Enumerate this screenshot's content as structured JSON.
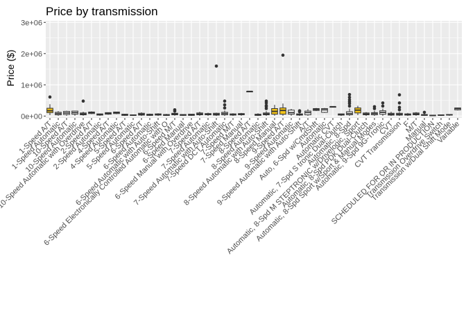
{
  "chart_data": {
    "type": "boxplot",
    "title": "Price by transmission",
    "xlabel": "",
    "ylabel": "Price ($)",
    "ylim": [
      -60000,
      3050000
    ],
    "y_ticks": [
      0,
      1000000,
      2000000,
      3000000
    ],
    "y_tick_labels": [
      "0e+00",
      "1e+06",
      "2e+06",
      "3e+06"
    ],
    "grid": true,
    "legend": "none",
    "colors": {
      "panel": "#ebebeb",
      "grid": "#ffffff",
      "box_fill": "#f2c318",
      "box_line": "#333333",
      "point": "#333333"
    },
    "categories": [
      "1-Speed A/T",
      "1-Speed Automatic",
      "10-Speed A/T",
      "10-Speed Automatic",
      "10-Speed Automatic with Overdrive",
      "2-Speed A/T",
      "2-Speed Automatic",
      "4-Speed A/T",
      "4-Speed Automatic",
      "5-Speed A/T",
      "5-Speed Automatic",
      "6-Speed A/T",
      "6-Speed Automatic",
      "6-Speed Automatic with Auto-Shift",
      "6-Speed Electronically Controlled Automatic with O",
      "6-Speed M/T",
      "6-Speed Manual",
      "6-Speed Manual with Overdrive",
      "7-Speed A/T",
      "7-Speed Automatic",
      "7-Speed Automatic with Auto-Shift",
      "7-Speed DCT Automatic",
      "7-Speed M/T",
      "7-Speed Manual",
      "8-Speed A/T",
      "8-Speed Automatic",
      "8-Speed Automatic with Auto-Shift",
      "8-Speed Manual",
      "9-Speed A/T",
      "9-Speed Automatic",
      "9-Speed Automatic with Auto-Shift",
      "A/T",
      "Auto, 6-Spd w/CmdShft",
      "Automatic",
      "Automatic CVT",
      "Automatic, 7-Spd S tronic Dual-Clutch",
      "Automatic, 8-Spd",
      "Automatic, 8-Spd M STEPTRONIC w/Drivelogic, Sport",
      "Automatic, 8-Spd PDK Dual-Clutch",
      "Automatic, 8-Spd Sport w/Sport & Manual Modes",
      "Automatic, 9-Spd 9G-Tronic",
      "CVT",
      "CVT Transmission",
      "F",
      "M/T",
      "Manual",
      "SCHEDULED FOR OR IN PRODUCTION",
      "Transmission Overdrive Switch",
      "Transmission w/Dual Shift Mode",
      "Variable"
    ],
    "boxes": [
      {
        "q1": 110000,
        "median": 170000,
        "q3": 250000,
        "wlo": 30000,
        "whi": 380000,
        "outliers": [
          610000
        ],
        "filled": true
      },
      {
        "q1": 40000,
        "median": 80000,
        "q3": 120000,
        "wlo": 10000,
        "whi": 160000,
        "outliers": [],
        "filled": false
      },
      {
        "q1": 50000,
        "median": 100000,
        "q3": 150000,
        "wlo": 10000,
        "whi": 170000,
        "outliers": [],
        "filled": false
      },
      {
        "q1": 60000,
        "median": 110000,
        "q3": 160000,
        "wlo": 10000,
        "whi": 170000,
        "outliers": [],
        "filled": false
      },
      {
        "q1": 40000,
        "median": 70000,
        "q3": 100000,
        "wlo": 10000,
        "whi": 140000,
        "outliers": [
          480000
        ],
        "filled": false
      },
      {
        "q1": 80000,
        "median": 110000,
        "q3": 130000,
        "wlo": 60000,
        "whi": 150000,
        "outliers": [],
        "filled": false
      },
      {
        "q1": 30000,
        "median": 50000,
        "q3": 70000,
        "wlo": 10000,
        "whi": 80000,
        "outliers": [],
        "filled": false
      },
      {
        "q1": 60000,
        "median": 90000,
        "q3": 110000,
        "wlo": 40000,
        "whi": 120000,
        "outliers": [],
        "filled": false
      },
      {
        "q1": 80000,
        "median": 110000,
        "q3": 130000,
        "wlo": 60000,
        "whi": 140000,
        "outliers": [],
        "filled": false
      },
      {
        "q1": 20000,
        "median": 40000,
        "q3": 60000,
        "wlo": 5000,
        "whi": 70000,
        "outliers": [],
        "filled": false
      },
      {
        "q1": 20000,
        "median": 30000,
        "q3": 40000,
        "wlo": 5000,
        "whi": 50000,
        "outliers": [],
        "filled": false
      },
      {
        "q1": 30000,
        "median": 60000,
        "q3": 90000,
        "wlo": 5000,
        "whi": 120000,
        "outliers": [],
        "filled": false
      },
      {
        "q1": 20000,
        "median": 40000,
        "q3": 60000,
        "wlo": 5000,
        "whi": 80000,
        "outliers": [],
        "filled": false
      },
      {
        "q1": 30000,
        "median": 50000,
        "q3": 70000,
        "wlo": 5000,
        "whi": 90000,
        "outliers": [],
        "filled": false
      },
      {
        "q1": 20000,
        "median": 30000,
        "q3": 50000,
        "wlo": 5000,
        "whi": 70000,
        "outliers": [],
        "filled": false
      },
      {
        "q1": 40000,
        "median": 70000,
        "q3": 90000,
        "wlo": 10000,
        "whi": 110000,
        "outliers": [
          160000,
          200000
        ],
        "filled": false
      },
      {
        "q1": 20000,
        "median": 40000,
        "q3": 50000,
        "wlo": 5000,
        "whi": 60000,
        "outliers": [],
        "filled": false
      },
      {
        "q1": 20000,
        "median": 40000,
        "q3": 60000,
        "wlo": 5000,
        "whi": 70000,
        "outliers": [],
        "filled": false
      },
      {
        "q1": 40000,
        "median": 70000,
        "q3": 100000,
        "wlo": 5000,
        "whi": 140000,
        "outliers": [],
        "filled": false
      },
      {
        "q1": 40000,
        "median": 60000,
        "q3": 80000,
        "wlo": 5000,
        "whi": 110000,
        "outliers": [],
        "filled": false
      },
      {
        "q1": 30000,
        "median": 60000,
        "q3": 90000,
        "wlo": 5000,
        "whi": 110000,
        "outliers": [
          1600000
        ],
        "filled": false
      },
      {
        "q1": 40000,
        "median": 80000,
        "q3": 120000,
        "wlo": 5000,
        "whi": 180000,
        "outliers": [
          260000,
          360000,
          480000
        ],
        "filled": false
      },
      {
        "q1": 30000,
        "median": 50000,
        "q3": 70000,
        "wlo": 5000,
        "whi": 90000,
        "outliers": [],
        "filled": false
      },
      {
        "q1": 40000,
        "median": 60000,
        "q3": 80000,
        "wlo": 10000,
        "whi": 100000,
        "outliers": [],
        "filled": false
      },
      {
        "q1": 790000,
        "median": 790000,
        "q3": 790000,
        "wlo": 790000,
        "whi": 790000,
        "outliers": [],
        "filled": false
      },
      {
        "q1": 20000,
        "median": 40000,
        "q3": 60000,
        "wlo": 5000,
        "whi": 90000,
        "outliers": [],
        "filled": false
      },
      {
        "q1": 40000,
        "median": 70000,
        "q3": 100000,
        "wlo": 5000,
        "whi": 160000,
        "outliers": [
          240000,
          300000,
          340000,
          420000,
          480000
        ],
        "filled": false
      },
      {
        "q1": 60000,
        "median": 150000,
        "q3": 240000,
        "wlo": 10000,
        "whi": 360000,
        "outliers": [],
        "filled": true
      },
      {
        "q1": 60000,
        "median": 180000,
        "q3": 260000,
        "wlo": 10000,
        "whi": 400000,
        "outliers": [
          1950000
        ],
        "filled": true
      },
      {
        "q1": 60000,
        "median": 110000,
        "q3": 190000,
        "wlo": 10000,
        "whi": 230000,
        "outliers": [],
        "filled": false
      },
      {
        "q1": 30000,
        "median": 50000,
        "q3": 70000,
        "wlo": 5000,
        "whi": 90000,
        "outliers": [
          140000,
          170000
        ],
        "filled": false
      },
      {
        "q1": 40000,
        "median": 110000,
        "q3": 160000,
        "wlo": 10000,
        "whi": 220000,
        "outliers": [],
        "filled": false
      },
      {
        "q1": 180000,
        "median": 210000,
        "q3": 240000,
        "wlo": 160000,
        "whi": 260000,
        "outliers": [],
        "filled": false
      },
      {
        "q1": 120000,
        "median": 200000,
        "q3": 240000,
        "wlo": 100000,
        "whi": 260000,
        "outliers": [],
        "filled": false
      },
      {
        "q1": 300000,
        "median": 300000,
        "q3": 300000,
        "wlo": 300000,
        "whi": 300000,
        "outliers": [],
        "filled": false
      },
      {
        "q1": 30000,
        "median": 50000,
        "q3": 70000,
        "wlo": 5000,
        "whi": 80000,
        "outliers": [],
        "filled": false
      },
      {
        "q1": 40000,
        "median": 80000,
        "q3": 140000,
        "wlo": 5000,
        "whi": 240000,
        "outliers": [
          320000,
          400000,
          460000,
          520000,
          600000,
          690000
        ],
        "filled": false
      },
      {
        "q1": 100000,
        "median": 190000,
        "q3": 260000,
        "wlo": 30000,
        "whi": 330000,
        "outliers": [],
        "filled": true
      },
      {
        "q1": 40000,
        "median": 70000,
        "q3": 100000,
        "wlo": 5000,
        "whi": 130000,
        "outliers": [],
        "filled": false
      },
      {
        "q1": 40000,
        "median": 80000,
        "q3": 110000,
        "wlo": 5000,
        "whi": 170000,
        "outliers": [
          240000,
          300000
        ],
        "filled": false
      },
      {
        "q1": 60000,
        "median": 120000,
        "q3": 170000,
        "wlo": 5000,
        "whi": 240000,
        "outliers": [
          320000,
          420000
        ],
        "filled": false
      },
      {
        "q1": 30000,
        "median": 60000,
        "q3": 90000,
        "wlo": 5000,
        "whi": 140000,
        "outliers": [],
        "filled": false
      },
      {
        "q1": 30000,
        "median": 60000,
        "q3": 90000,
        "wlo": 5000,
        "whi": 130000,
        "outliers": [
          200000,
          280000,
          420000,
          680000
        ],
        "filled": false
      },
      {
        "q1": 30000,
        "median": 50000,
        "q3": 70000,
        "wlo": 5000,
        "whi": 100000,
        "outliers": [],
        "filled": false
      },
      {
        "q1": 40000,
        "median": 70000,
        "q3": 100000,
        "wlo": 10000,
        "whi": 130000,
        "outliers": [],
        "filled": false
      },
      {
        "q1": 20000,
        "median": 35000,
        "q3": 50000,
        "wlo": 5000,
        "whi": 80000,
        "outliers": [
          120000
        ],
        "filled": false
      },
      {
        "q1": 10000,
        "median": 20000,
        "q3": 30000,
        "wlo": 2000,
        "whi": 40000,
        "outliers": [],
        "filled": false
      },
      {
        "q1": 20000,
        "median": 30000,
        "q3": 40000,
        "wlo": 5000,
        "whi": 50000,
        "outliers": [],
        "filled": false
      },
      {
        "q1": 30000,
        "median": 40000,
        "q3": 50000,
        "wlo": 10000,
        "whi": 60000,
        "outliers": [],
        "filled": false
      },
      {
        "q1": 200000,
        "median": 240000,
        "q3": 260000,
        "wlo": 180000,
        "whi": 270000,
        "outliers": [],
        "filled": false
      }
    ]
  }
}
